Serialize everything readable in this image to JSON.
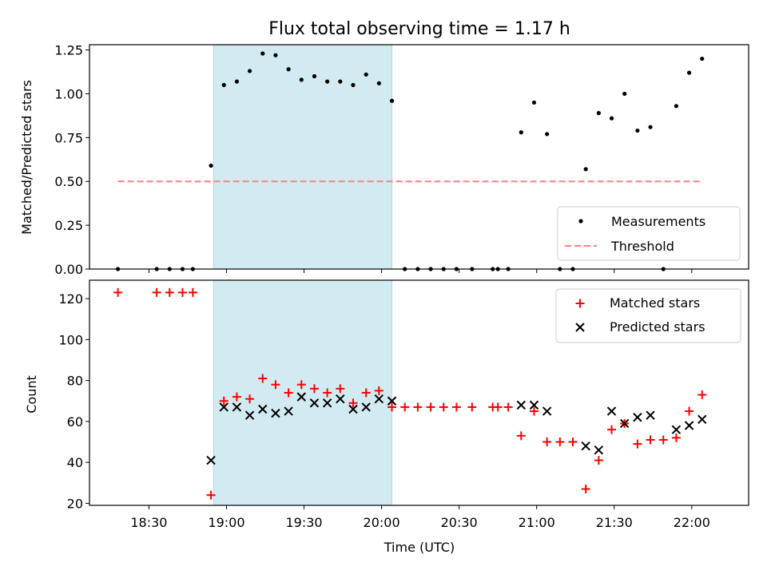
{
  "title": "Flux total observing time = 1.17 h",
  "xlabel": "Time (UTC)",
  "x_tick_labels": [
    "18:30",
    "19:00",
    "19:30",
    "20:00",
    "20:30",
    "21:00",
    "21:30",
    "22:00"
  ],
  "colors": {
    "measurement": "#000000",
    "threshold": "#ff7f7f",
    "matched": "#ff0000",
    "predicted": "#000000",
    "span": "#add8e6"
  },
  "chart_data": [
    {
      "type": "scatter",
      "name": "ratio-panel",
      "ylabel": "Matched/Predicted stars",
      "ylim": [
        0,
        1.28
      ],
      "y_ticks": [
        "0.00",
        "0.25",
        "0.50",
        "0.75",
        "1.00",
        "1.25"
      ],
      "xlim": [
        "18:07",
        "22:22"
      ],
      "shaded_span": [
        "18:55",
        "20:04"
      ],
      "legend": {
        "placement": "lower right",
        "entries": [
          "Measurements",
          "Threshold"
        ]
      },
      "threshold": {
        "name": "Threshold",
        "value": 0.5,
        "x": [
          "18:18",
          "22:04"
        ]
      },
      "series": [
        {
          "name": "Measurements",
          "points": [
            [
              "18:18",
              0
            ],
            [
              "18:33",
              0
            ],
            [
              "18:38",
              0
            ],
            [
              "18:43",
              0
            ],
            [
              "18:47",
              0
            ],
            [
              "18:54",
              0.59
            ],
            [
              "18:59",
              1.05
            ],
            [
              "19:04",
              1.07
            ],
            [
              "19:09",
              1.13
            ],
            [
              "19:14",
              1.23
            ],
            [
              "19:19",
              1.22
            ],
            [
              "19:24",
              1.14
            ],
            [
              "19:29",
              1.08
            ],
            [
              "19:34",
              1.1
            ],
            [
              "19:39",
              1.07
            ],
            [
              "19:44",
              1.07
            ],
            [
              "19:49",
              1.05
            ],
            [
              "19:54",
              1.11
            ],
            [
              "19:59",
              1.06
            ],
            [
              "20:04",
              0.96
            ],
            [
              "20:09",
              0
            ],
            [
              "20:14",
              0
            ],
            [
              "20:19",
              0
            ],
            [
              "20:24",
              0
            ],
            [
              "20:29",
              0
            ],
            [
              "20:35",
              0
            ],
            [
              "20:43",
              0
            ],
            [
              "20:45",
              0
            ],
            [
              "20:49",
              0
            ],
            [
              "20:54",
              0.78
            ],
            [
              "20:59",
              0.95
            ],
            [
              "21:04",
              0.77
            ],
            [
              "21:09",
              0
            ],
            [
              "21:14",
              0
            ],
            [
              "21:19",
              0.57
            ],
            [
              "21:24",
              0.89
            ],
            [
              "21:29",
              0.86
            ],
            [
              "21:34",
              1.0
            ],
            [
              "21:39",
              0.79
            ],
            [
              "21:44",
              0.81
            ],
            [
              "21:49",
              0
            ],
            [
              "21:54",
              0.93
            ],
            [
              "21:59",
              1.12
            ],
            [
              "22:04",
              1.2
            ]
          ]
        }
      ]
    },
    {
      "type": "scatter",
      "name": "count-panel",
      "ylabel": "Count",
      "ylim": [
        19,
        129
      ],
      "y_ticks": [
        "20",
        "40",
        "60",
        "80",
        "100",
        "120"
      ],
      "xlim": [
        "18:07",
        "22:22"
      ],
      "shaded_span": [
        "18:55",
        "20:04"
      ],
      "legend": {
        "placement": "upper right",
        "entries": [
          "Matched stars",
          "Predicted stars"
        ]
      },
      "series": [
        {
          "name": "Matched stars",
          "points": [
            [
              "18:18",
              123
            ],
            [
              "18:33",
              123
            ],
            [
              "18:38",
              123
            ],
            [
              "18:43",
              123
            ],
            [
              "18:47",
              123
            ],
            [
              "18:54",
              24
            ],
            [
              "18:59",
              70
            ],
            [
              "19:04",
              72
            ],
            [
              "19:09",
              71
            ],
            [
              "19:14",
              81
            ],
            [
              "19:19",
              78
            ],
            [
              "19:24",
              74
            ],
            [
              "19:29",
              78
            ],
            [
              "19:34",
              76
            ],
            [
              "19:39",
              74
            ],
            [
              "19:44",
              76
            ],
            [
              "19:49",
              69
            ],
            [
              "19:54",
              74
            ],
            [
              "19:59",
              75
            ],
            [
              "20:04",
              67
            ],
            [
              "20:09",
              67
            ],
            [
              "20:14",
              67
            ],
            [
              "20:19",
              67
            ],
            [
              "20:24",
              67
            ],
            [
              "20:29",
              67
            ],
            [
              "20:35",
              67
            ],
            [
              "20:43",
              67
            ],
            [
              "20:45",
              67
            ],
            [
              "20:49",
              67
            ],
            [
              "20:54",
              53
            ],
            [
              "20:59",
              65
            ],
            [
              "21:04",
              50
            ],
            [
              "21:09",
              50
            ],
            [
              "21:14",
              50
            ],
            [
              "21:19",
              27
            ],
            [
              "21:24",
              41
            ],
            [
              "21:29",
              56
            ],
            [
              "21:34",
              59
            ],
            [
              "21:39",
              49
            ],
            [
              "21:44",
              51
            ],
            [
              "21:49",
              51
            ],
            [
              "21:54",
              52
            ],
            [
              "21:59",
              65
            ],
            [
              "22:04",
              73
            ]
          ]
        },
        {
          "name": "Predicted stars",
          "points": [
            [
              "18:54",
              41
            ],
            [
              "18:59",
              67
            ],
            [
              "19:04",
              67
            ],
            [
              "19:09",
              63
            ],
            [
              "19:14",
              66
            ],
            [
              "19:19",
              64
            ],
            [
              "19:24",
              65
            ],
            [
              "19:29",
              72
            ],
            [
              "19:34",
              69
            ],
            [
              "19:39",
              69
            ],
            [
              "19:44",
              71
            ],
            [
              "19:49",
              66
            ],
            [
              "19:54",
              67
            ],
            [
              "19:59",
              71
            ],
            [
              "20:04",
              70
            ],
            [
              "20:54",
              68
            ],
            [
              "20:59",
              68
            ],
            [
              "21:04",
              65
            ],
            [
              "21:19",
              48
            ],
            [
              "21:24",
              46
            ],
            [
              "21:29",
              65
            ],
            [
              "21:34",
              59
            ],
            [
              "21:39",
              62
            ],
            [
              "21:44",
              63
            ],
            [
              "21:54",
              56
            ],
            [
              "21:59",
              58
            ],
            [
              "22:04",
              61
            ]
          ]
        }
      ]
    }
  ]
}
